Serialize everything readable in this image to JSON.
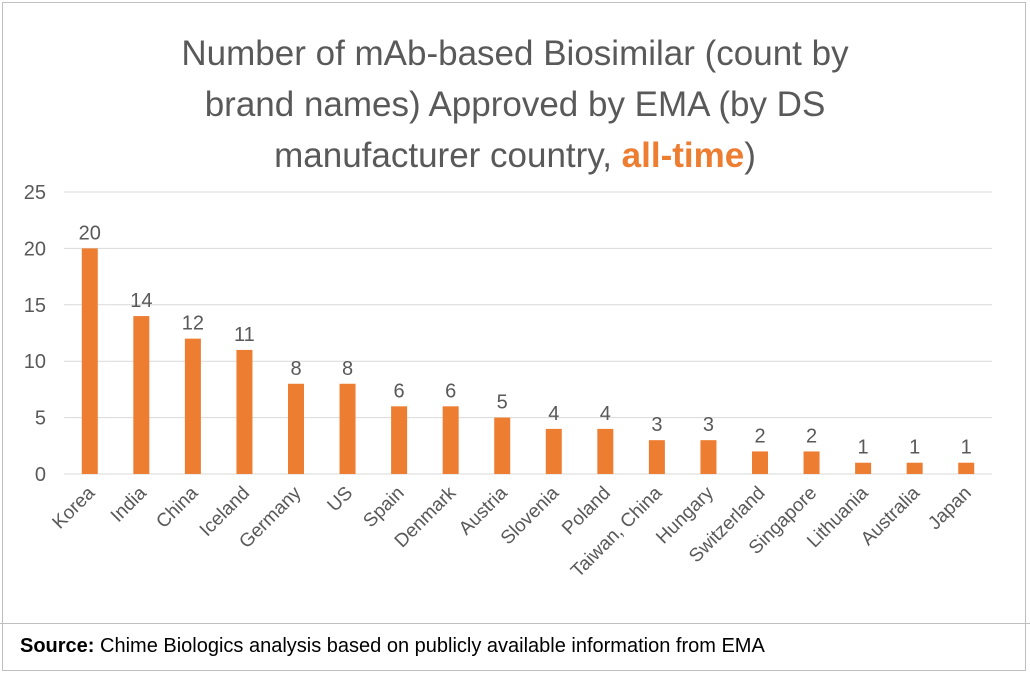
{
  "title": {
    "line1": "Number of mAb-based Biosimilar (count by",
    "line2": "brand names) Approved by EMA (by DS",
    "line3_before": "manufacturer country, ",
    "line3_highlight": "all-time",
    "line3_after": ")"
  },
  "source": {
    "label": "Source:",
    "text": " Chime Biologics analysis based on publicly available information from EMA"
  },
  "colors": {
    "bar": "#ed7d31",
    "highlight": "#ed7d31",
    "text": "#595959",
    "grid": "#d9d9d9"
  },
  "chart_data": {
    "type": "bar",
    "title": "Number of mAb-based Biosimilar (count by brand names) Approved by EMA (by DS manufacturer country, all-time)",
    "categories": [
      "Korea",
      "India",
      "China",
      "Iceland",
      "Germany",
      "US",
      "Spain",
      "Denmark",
      "Austria",
      "Slovenia",
      "Poland",
      "Taiwan, China",
      "Hungary",
      "Switzerland",
      "Singapore",
      "Lithuania",
      "Australia",
      "Japan"
    ],
    "values": [
      20,
      14,
      12,
      11,
      8,
      8,
      6,
      6,
      5,
      4,
      4,
      3,
      3,
      2,
      2,
      1,
      1,
      1
    ],
    "ylim": [
      0,
      25
    ],
    "yticks": [
      0,
      5,
      10,
      15,
      20,
      25
    ],
    "grid": true,
    "data_labels": true,
    "xlabel": "",
    "ylabel": ""
  }
}
